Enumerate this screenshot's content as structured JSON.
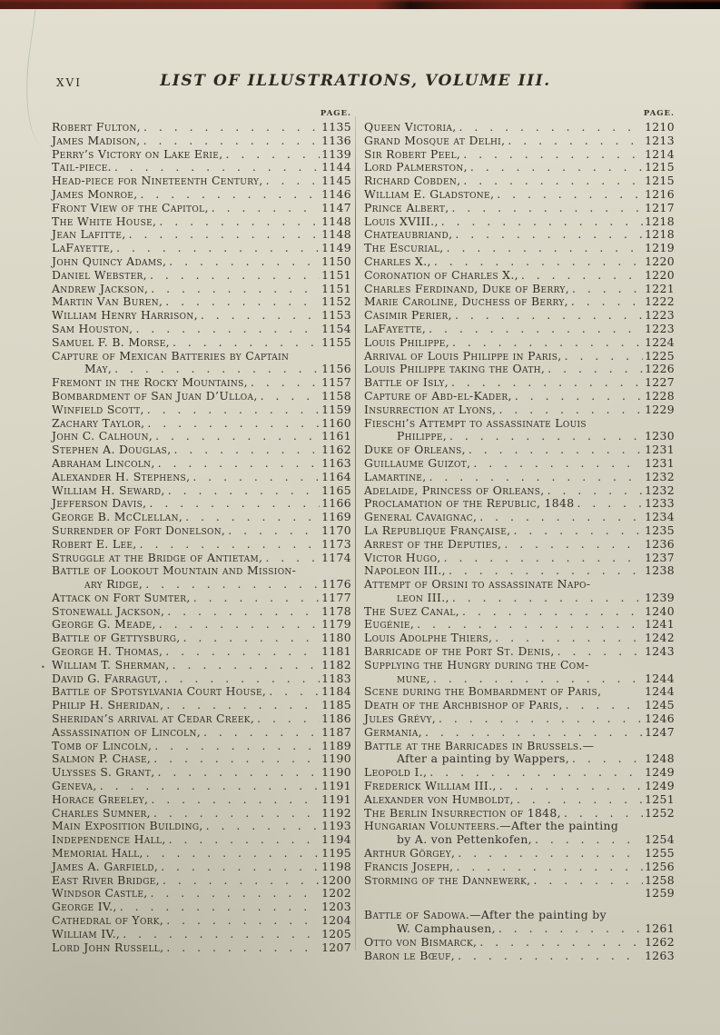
{
  "page": {
    "folio": "XVI",
    "title": "LIST OF ILLUSTRATIONS, VOLUME III.",
    "column_page_label_left": "PAGE.",
    "column_page_label_right": "PAGE.",
    "paper_color": "#d9d6c6",
    "ink_color": "#2f2d26",
    "binding_edge_color": "#5d211a"
  },
  "columns": {
    "left": [
      {
        "sc": "Robert Fulton,",
        "page": "1135"
      },
      {
        "sc": "James Madison,",
        "page": "1136"
      },
      {
        "sc": "Perry’s Victory on Lake Erie,",
        "page": "1139"
      },
      {
        "sc": "Tail-piece.",
        "page": "1144"
      },
      {
        "sc": "Head-piece for Nineteenth Century,",
        "page": "1145"
      },
      {
        "sc": "James Monroe,",
        "page": "1146"
      },
      {
        "sc": "Front View of the Capitol,",
        "page": "1147"
      },
      {
        "sc": "The White House,",
        "page": "1148"
      },
      {
        "sc": "Jean Lafitte,",
        "page": "1148"
      },
      {
        "sc": "LaFayette,",
        "page": "1149"
      },
      {
        "sc": "John Quincy Adams,",
        "page": "1150"
      },
      {
        "sc": "Daniel Webster,",
        "page": "1151"
      },
      {
        "sc": "Andrew Jackson,",
        "page": "1151"
      },
      {
        "sc": "Martin Van Buren,",
        "page": "1152"
      },
      {
        "sc": "William Henry Harrison,",
        "page": "1153"
      },
      {
        "sc": "Sam Houston,",
        "page": "1154"
      },
      {
        "sc": "Samuel F. B. Morse,",
        "page": "1155"
      },
      {
        "sc": "Capture of Mexican Batteries by Captain"
      },
      {
        "sc": "May,",
        "page": "1156",
        "indent": true
      },
      {
        "sc": "Fremont in the Rocky Mountains,",
        "page": "1157"
      },
      {
        "sc": "Bombardment of San Juan D’Ulloa,",
        "page": "1158"
      },
      {
        "sc": "Winfield Scott,",
        "page": "1159"
      },
      {
        "sc": "Zachary Taylor,",
        "page": "1160"
      },
      {
        "sc": "John C. Calhoun,",
        "page": "1161"
      },
      {
        "sc": "Stephen A. Douglas,",
        "page": "1162"
      },
      {
        "sc": "Abraham Lincoln,",
        "page": "1163"
      },
      {
        "sc": "Alexander H. Stephens,",
        "page": "1164"
      },
      {
        "sc": "William H. Seward,",
        "page": "1165"
      },
      {
        "sc": "Jefferson Davis,",
        "page": "1166"
      },
      {
        "sc": "George B. McClellan,",
        "page": "1169"
      },
      {
        "sc": "Surrender of Fort Donelson,",
        "page": "1170"
      },
      {
        "sc": "Robert E. Lee,",
        "page": "1173"
      },
      {
        "sc": "Struggle at the Bridge of Antietam,",
        "page": "1174"
      },
      {
        "sc": "Battle of Lookout Mountain and Mission-"
      },
      {
        "sc": "ary Ridge,",
        "page": "1176",
        "indent": true
      },
      {
        "sc": "Attack on Fort Sumter,",
        "page": "1177"
      },
      {
        "sc": "Stonewall Jackson,",
        "page": "1178"
      },
      {
        "sc": "George G. Meade,",
        "page": "1179"
      },
      {
        "sc": "Battle of Gettysburg,",
        "page": "1180"
      },
      {
        "sc": "George H. Thomas,",
        "page": "1181"
      },
      {
        "sc": "William T. Sherman,",
        "page": "1182",
        "marker": true
      },
      {
        "sc": "David G. Farragut,",
        "page": "1183"
      },
      {
        "sc": "Battle of Spotsylvania Court House,",
        "page": "1184"
      },
      {
        "sc": "Philip H. Sheridan,",
        "page": "1185"
      },
      {
        "sc": "Sheridan’s arrival at Cedar Creek,",
        "page": "1186"
      },
      {
        "sc": "Assassination of Lincoln,",
        "page": "1187"
      },
      {
        "sc": "Tomb of Lincoln,",
        "page": "1189"
      },
      {
        "sc": "Salmon P. Chase,",
        "page": "1190"
      },
      {
        "sc": "Ulysses S. Grant,",
        "page": "1190"
      },
      {
        "sc": "Geneva,",
        "page": "1191"
      },
      {
        "sc": "Horace Greeley,",
        "page": "1191"
      },
      {
        "sc": "Charles Sumner,",
        "page": "1192"
      },
      {
        "sc": "Main Exposition Building,",
        "page": "1193"
      },
      {
        "sc": "Independence Hall,",
        "page": "1194"
      },
      {
        "sc": "Memorial Hall,",
        "page": "1195"
      },
      {
        "sc": "James A. Garfield,",
        "page": "1198"
      },
      {
        "sc": "East River Bridge,",
        "page": "1200"
      },
      {
        "sc": "Windsor Castle,",
        "page": "1202"
      },
      {
        "sc": "George IV.,",
        "page": "1203"
      },
      {
        "sc": "Cathedral of York,",
        "page": "1204"
      },
      {
        "sc": "William IV.,",
        "page": "1205"
      },
      {
        "sc": "Lord John Russell,",
        "page": "1207"
      }
    ],
    "right": [
      {
        "sc": "Queen Victoria,",
        "page": "1210"
      },
      {
        "sc": "Grand Mosque at Delhi,",
        "page": "1213"
      },
      {
        "sc": "Sir Robert Peel,",
        "page": "1214"
      },
      {
        "sc": "Lord Palmerston,",
        "page": "1215"
      },
      {
        "sc": "Richard Cobden,",
        "page": "1215"
      },
      {
        "sc": "William E. Gladstone,",
        "page": "1216"
      },
      {
        "sc": "Prince Albert,",
        "page": "1217"
      },
      {
        "sc": "Louis XVIII.,",
        "page": "1218"
      },
      {
        "sc": "Chateaubriand,",
        "page": "1218"
      },
      {
        "sc": "The Escurial,",
        "page": "1219"
      },
      {
        "sc": "Charles X.,",
        "page": "1220"
      },
      {
        "sc": "Coronation of Charles X.,",
        "page": "1220"
      },
      {
        "sc": "Charles Ferdinand, Duke of Berry,",
        "page": "1221"
      },
      {
        "sc": "Marie Caroline, Duchess of Berry,",
        "page": "1222"
      },
      {
        "sc": "Casimir Perier,",
        "page": "1223"
      },
      {
        "sc": "LaFayette,",
        "page": "1223"
      },
      {
        "sc": "Louis Philippe,",
        "page": "1224"
      },
      {
        "sc": "Arrival of Louis Philippe in Paris,",
        "page": "1225"
      },
      {
        "sc": "Louis Philippe taking the Oath,",
        "page": "1226"
      },
      {
        "sc": "Battle of Isly,",
        "page": "1227"
      },
      {
        "sc": "Capture of Abd-el-Kader,",
        "page": "1228"
      },
      {
        "sc": "Insurrection at Lyons,",
        "page": "1229"
      },
      {
        "sc": "Fieschi’s Attempt to assassinate Louis"
      },
      {
        "sc": "Philippe,",
        "page": "1230",
        "indent": true
      },
      {
        "sc": "Duke of Orleans,",
        "page": "1231"
      },
      {
        "sc": "Guillaume Guizot,",
        "page": "1231"
      },
      {
        "sc": "Lamartine,",
        "page": "1232"
      },
      {
        "sc": "Adelaide, Princess of Orleans,",
        "page": "1232"
      },
      {
        "sc": "Proclamation of the Republic, 1848",
        "page": "1233"
      },
      {
        "sc": "General Cavaignac,",
        "page": "1234"
      },
      {
        "sc": "La Republique Française,",
        "page": "1235"
      },
      {
        "sc": "Arrest of the Deputies,",
        "page": "1236"
      },
      {
        "sc": "Victor Hugo,",
        "page": "1237"
      },
      {
        "sc": "Napoleon III.,",
        "page": "1238"
      },
      {
        "sc": "Attempt of Orsini to assassinate Napo-"
      },
      {
        "sc": "leon III.,",
        "page": "1239",
        "indent": true
      },
      {
        "sc": "The Suez Canal,",
        "page": "1240"
      },
      {
        "sc": "Eugénie,",
        "page": "1241"
      },
      {
        "sc": "Louis Adolphe Thiers,",
        "page": "1242"
      },
      {
        "sc": "Barricade of the Port St. Denis,",
        "page": "1243"
      },
      {
        "sc": "Supplying the Hungry during the Com-"
      },
      {
        "sc": "mune,",
        "page": "1244",
        "indent": true
      },
      {
        "sc": "Scene during the Bombardment of Paris,",
        "page": "1244",
        "leader": false
      },
      {
        "sc": "Death of the Archbishop of Paris,",
        "page": "1245"
      },
      {
        "sc": "Jules Grévy,",
        "page": "1246"
      },
      {
        "sc": "Germania,",
        "page": "1247"
      },
      {
        "sc": "Battle at the Barricades in Brussels.—"
      },
      {
        "plain": "After a painting by Wappers,",
        "page": "1248",
        "indent": true
      },
      {
        "sc": "Leopold I.,",
        "page": "1249"
      },
      {
        "sc": "Frederick William III.,",
        "page": "1249"
      },
      {
        "sc": "Alexander von Humboldt,",
        "page": "1251"
      },
      {
        "sc": "The Berlin Insurrection of 1848,",
        "page": "1252"
      },
      {
        "sc": "Hungarian Volunteers.—",
        "plain": "After the painting"
      },
      {
        "plain": "by A. von Pettenkofen,",
        "page": "1254",
        "indent": true
      },
      {
        "sc": "Arthur Görgey,",
        "page": "1255"
      },
      {
        "sc": "Francis Joseph,",
        "page": "1256"
      },
      {
        "sc": "Storming of the Dannewerk,",
        "page": "1258"
      },
      {
        "page": "1259",
        "leader": false
      },
      {
        "sc": "Battle of Sadowa.—",
        "plain": "After the painting by",
        "gapTop": true
      },
      {
        "plain": "W. Camphausen,",
        "page": "1261",
        "indent": true
      },
      {
        "sc": "Otto von Bismarck,",
        "page": "1262"
      },
      {
        "sc": "Baron le Bœuf,",
        "page": "1263"
      }
    ]
  }
}
